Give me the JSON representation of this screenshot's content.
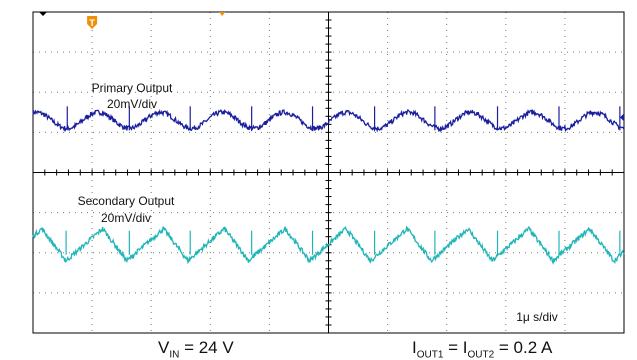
{
  "chart_data": {
    "type": "line",
    "grid": true,
    "grid_divisions": {
      "horizontal": 10,
      "vertical": 8,
      "minor_ticks_per_division": 5
    },
    "trigger_marker": "T",
    "time_scale": "1μ s/div",
    "x_unit": "div",
    "y_unit": "div",
    "xlim": [
      0,
      10
    ],
    "ylim": [
      -4,
      4
    ],
    "series": [
      {
        "name": "Primary Output",
        "scale": "20mV/div",
        "color": "#1a1f9e",
        "baseline_div": 1.3,
        "ripple_peak_to_peak_div": 0.4,
        "ripple_period_div": 1.05,
        "waveform": "sinusoidal ripple with switching spikes",
        "spike_x_div": [
          0.58,
          1.63,
          2.66,
          3.7,
          4.73,
          5.78,
          6.8,
          7.86,
          8.9,
          9.93
        ]
      },
      {
        "name": "Secondary Output",
        "scale": "20mV/div",
        "color": "#1fb5b8",
        "baseline_div": -1.8,
        "ripple_peak_to_peak_div": 0.8,
        "ripple_period_div": 1.03,
        "waveform": "triangular ripple with switching spikes",
        "spike_x_div": [
          0.56,
          1.63,
          2.66,
          3.7,
          4.73,
          5.78,
          6.8,
          7.86,
          8.9,
          9.93
        ]
      }
    ]
  },
  "labels": {
    "primary_title": "Primary Output",
    "primary_scale": "20mV/div",
    "secondary_title": "Secondary Output",
    "secondary_scale": "20mV/div",
    "timebase": "1μ s/div"
  },
  "caption": {
    "vin_main": "V",
    "vin_sub": "IN",
    "vin_value": " = 24 V",
    "iout_main1": "I",
    "iout_sub1": "OUT1",
    "iout_eq": " = ",
    "iout_main2": "I",
    "iout_sub2": "OUT2",
    "iout_value": " = 0.2 A"
  },
  "colors": {
    "grid": "#7a7a7a",
    "axis": "#000000",
    "trigger": "#f0900a",
    "text": "#111111"
  }
}
